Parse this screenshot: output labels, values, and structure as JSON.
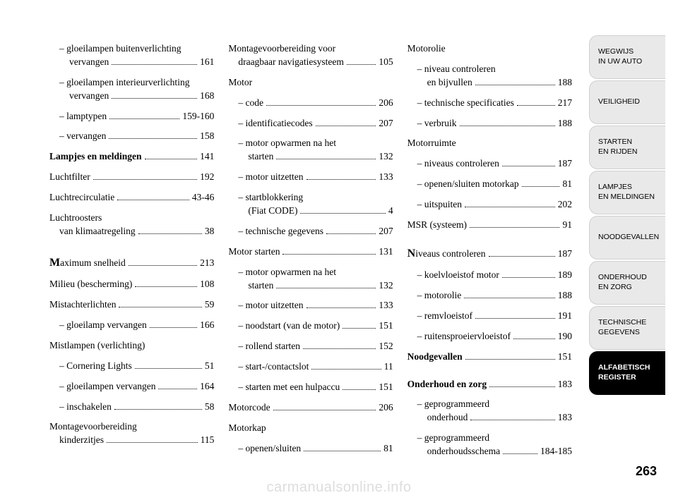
{
  "page_number": "263",
  "watermark": "carmanualsonline.info",
  "tabs": [
    {
      "line1": "WEGWIJS",
      "line2": "IN UW AUTO",
      "active": false
    },
    {
      "line1": "VEILIGHEID",
      "line2": "",
      "active": false
    },
    {
      "line1": "STARTEN",
      "line2": "EN RIJDEN",
      "active": false
    },
    {
      "line1": "LAMPJES",
      "line2": "EN MELDINGEN",
      "active": false
    },
    {
      "line1": "NOODGEVALLEN",
      "line2": "",
      "active": false
    },
    {
      "line1": "ONDERHOUD",
      "line2": "EN ZORG",
      "active": false
    },
    {
      "line1": "TECHNISCHE",
      "line2": "GEGEVENS",
      "active": false
    },
    {
      "line1": "ALFABETISCH",
      "line2": "REGISTER",
      "active": true
    }
  ],
  "col1": [
    {
      "label1": "– gloeilampen buitenverlichting",
      "label2": "vervangen",
      "page": "161",
      "sub": true,
      "two": true
    },
    {
      "label1": "– gloeilampen interieurverlichting",
      "label2": "vervangen",
      "page": "168",
      "sub": true,
      "two": true
    },
    {
      "label": "– lamptypen",
      "page": "159-160",
      "sub": true
    },
    {
      "label": "– vervangen",
      "page": "158",
      "sub": true
    },
    {
      "label": "Lampjes en meldingen",
      "page": "141",
      "bold": true
    },
    {
      "label": "Luchtfilter",
      "page": "192"
    },
    {
      "label": "Luchtrecirculatie",
      "page": "43-46"
    },
    {
      "label1": "Luchtroosters",
      "label2": "van klimaatregeling",
      "page": "38",
      "two": true
    },
    {
      "gap": true
    },
    {
      "cap": "M",
      "label": "aximum snelheid",
      "page": "213"
    },
    {
      "label": "Milieu (bescherming)",
      "page": "108"
    },
    {
      "label": "Mistachterlichten",
      "page": "59"
    },
    {
      "label": "– gloeilamp vervangen",
      "page": "166",
      "sub": true
    },
    {
      "label": "Mistlampen (verlichting)",
      "page": "",
      "nodots": true
    },
    {
      "label": "– Cornering Lights",
      "page": "51",
      "sub": true
    },
    {
      "label": "– gloeilampen vervangen",
      "page": "164",
      "sub": true
    },
    {
      "label": "– inschakelen",
      "page": "58",
      "sub": true
    },
    {
      "label1": "Montagevoorbereiding",
      "label2": "kinderzitjes",
      "page": "115",
      "two": true
    }
  ],
  "col2": [
    {
      "label1": "Montagevoorbereiding voor",
      "label2": "draagbaar navigatiesysteem",
      "page": "105",
      "two": true
    },
    {
      "label": "Motor",
      "page": "",
      "nodots": true
    },
    {
      "label": "– code",
      "page": "206",
      "sub": true
    },
    {
      "label": "– identificatiecodes",
      "page": "207",
      "sub": true
    },
    {
      "label1": "– motor opwarmen na het",
      "label2": "starten",
      "page": "132",
      "sub": true,
      "two": true
    },
    {
      "label": "– motor uitzetten",
      "page": "133",
      "sub": true
    },
    {
      "label1": "– startblokkering",
      "label2": "(Fiat CODE)",
      "page": "4",
      "sub": true,
      "two": true
    },
    {
      "label": "– technische gegevens",
      "page": "207",
      "sub": true
    },
    {
      "label": "Motor starten",
      "page": "131"
    },
    {
      "label1": "– motor opwarmen na het",
      "label2": "starten",
      "page": "132",
      "sub": true,
      "two": true
    },
    {
      "label": "– motor uitzetten",
      "page": "133",
      "sub": true
    },
    {
      "label": "– noodstart (van de motor)",
      "page": "151",
      "sub": true
    },
    {
      "label": "– rollend starten",
      "page": "152",
      "sub": true
    },
    {
      "label": "– start-/contactslot",
      "page": "11",
      "sub": true
    },
    {
      "label": "– starten met een hulpaccu",
      "page": "151",
      "sub": true
    },
    {
      "label": "Motorcode",
      "page": "206"
    },
    {
      "label": "Motorkap",
      "page": "",
      "nodots": true
    },
    {
      "label": "– openen/sluiten",
      "page": "81",
      "sub": true
    }
  ],
  "col3": [
    {
      "label": "Motorolie",
      "page": "",
      "nodots": true
    },
    {
      "label1": "– niveau controleren",
      "label2": "en bijvullen",
      "page": "188",
      "sub": true,
      "two": true
    },
    {
      "label": "– technische specificaties",
      "page": "217",
      "sub": true
    },
    {
      "label": "– verbruik",
      "page": "188",
      "sub": true
    },
    {
      "label": "Motorruimte",
      "page": "",
      "nodots": true
    },
    {
      "label": "– niveaus controleren",
      "page": "187",
      "sub": true
    },
    {
      "label": "– openen/sluiten motorkap",
      "page": "81",
      "sub": true
    },
    {
      "label": "– uitspuiten",
      "page": "202",
      "sub": true
    },
    {
      "label": "MSR (systeem)",
      "page": "91"
    },
    {
      "gap": true
    },
    {
      "cap": "N",
      "label": "iveaus controleren",
      "page": "187"
    },
    {
      "label": "– koelvloeistof motor",
      "page": "189",
      "sub": true
    },
    {
      "label": "– motorolie",
      "page": "188",
      "sub": true
    },
    {
      "label": "– remvloeistof",
      "page": "191",
      "sub": true
    },
    {
      "label": "– ruitensproeiervloeistof",
      "page": "190",
      "sub": true
    },
    {
      "label": "Noodgevallen",
      "page": "151",
      "bold": true
    },
    {
      "gap": true
    },
    {
      "label": "Onderhoud en zorg",
      "page": "183",
      "bold": true
    },
    {
      "label1": "– geprogrammeerd",
      "label2": "onderhoud",
      "page": "183",
      "sub": true,
      "two": true
    },
    {
      "label1": "– geprogrammeerd",
      "label2": "onderhoudsschema",
      "page": "184-185",
      "sub": true,
      "two": true
    }
  ]
}
